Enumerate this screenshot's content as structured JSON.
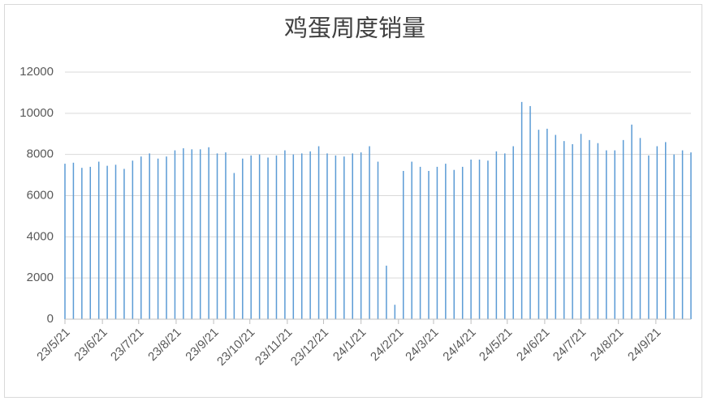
{
  "chart_data": {
    "type": "bar",
    "title": "鸡蛋周度销量",
    "x": [
      "23/5/21",
      "23/5/28",
      "23/6/4",
      "23/6/11",
      "23/6/18",
      "23/6/25",
      "23/7/2",
      "23/7/9",
      "23/7/16",
      "23/7/23",
      "23/7/30",
      "23/8/6",
      "23/8/13",
      "23/8/20",
      "23/8/27",
      "23/9/3",
      "23/9/10",
      "23/9/17",
      "23/9/24",
      "23/10/1",
      "23/10/8",
      "23/10/15",
      "23/10/22",
      "23/10/29",
      "23/11/5",
      "23/11/12",
      "23/11/19",
      "23/11/26",
      "23/12/3",
      "23/12/10",
      "23/12/17",
      "23/12/24",
      "23/12/31",
      "24/1/7",
      "24/1/14",
      "24/1/21",
      "24/1/28",
      "24/2/4",
      "24/2/11",
      "24/2/18",
      "24/2/25",
      "24/3/3",
      "24/3/10",
      "24/3/17",
      "24/3/24",
      "24/3/31",
      "24/4/7",
      "24/4/14",
      "24/4/21",
      "24/4/28",
      "24/5/5",
      "24/5/12",
      "24/5/19",
      "24/5/26",
      "24/6/2",
      "24/6/9",
      "24/6/16",
      "24/6/23",
      "24/6/30",
      "24/7/7",
      "24/7/14",
      "24/7/21",
      "24/7/28",
      "24/8/4",
      "24/8/11",
      "24/8/18",
      "24/8/25",
      "24/9/1",
      "24/9/8",
      "24/9/15",
      "24/9/22",
      "24/9/29",
      "24/10/6",
      "24/10/13",
      "24/10/20"
    ],
    "values": [
      7550,
      7600,
      7350,
      7400,
      7650,
      7450,
      7500,
      7300,
      7700,
      7900,
      8050,
      7800,
      7900,
      8200,
      8300,
      8250,
      8250,
      8350,
      8050,
      8100,
      7100,
      7800,
      7950,
      8000,
      7850,
      7950,
      8200,
      8000,
      8050,
      8150,
      8400,
      8050,
      7950,
      7900,
      8050,
      8100,
      8400,
      7650,
      2600,
      700,
      7200,
      7650,
      7400,
      7200,
      7400,
      7550,
      7250,
      7400,
      7750,
      7750,
      7700,
      8150,
      8050,
      8400,
      10550,
      10350,
      9200,
      9250,
      8950,
      8650,
      8500,
      9000,
      8700,
      8550,
      8200,
      8200,
      8700,
      9450,
      8800,
      7950,
      8400,
      8600,
      8000,
      8200,
      8100
    ],
    "color": "#5b9bd5",
    "xlim": [
      "23/5/21",
      "24/10/20"
    ],
    "xticks": [
      "23/5/21",
      "23/6/21",
      "23/7/21",
      "23/8/21",
      "23/9/21",
      "23/10/21",
      "23/11/21",
      "23/12/21",
      "24/1/21",
      "24/2/21",
      "24/3/21",
      "24/4/21",
      "24/5/21",
      "24/6/21",
      "24/7/21",
      "24/8/21",
      "24/9/21"
    ],
    "ylim": [
      0,
      12000
    ],
    "yticks": [
      0,
      2000,
      4000,
      6000,
      8000,
      10000,
      12000
    ],
    "grid": true
  }
}
